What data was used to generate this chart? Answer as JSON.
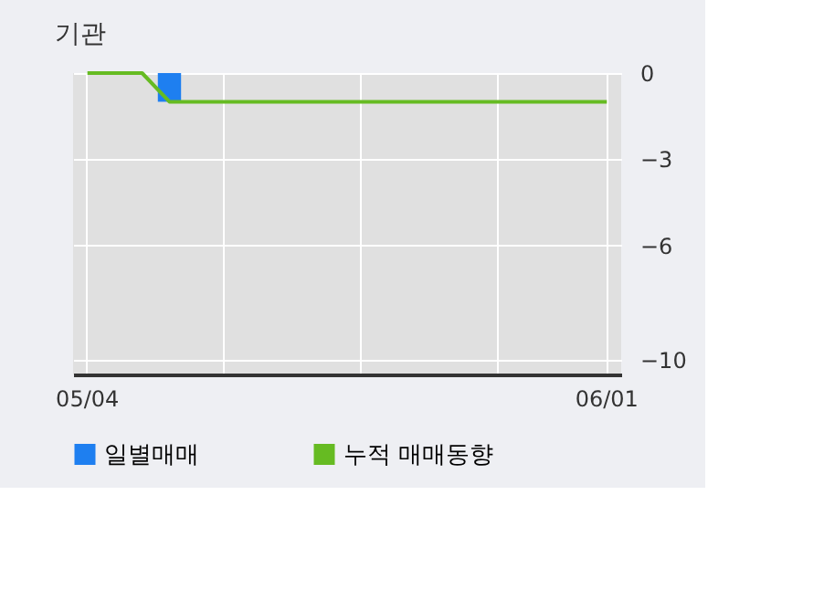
{
  "chart_data": {
    "type": "bar",
    "title": "기관",
    "categories": [
      "05/04",
      null,
      null,
      null,
      null,
      null,
      null,
      null,
      null,
      null,
      null,
      null,
      null,
      null,
      null,
      null,
      null,
      null,
      null,
      "06/01"
    ],
    "series": [
      {
        "name": "일별매매",
        "color": "#1e7ff0",
        "values": [
          null,
          null,
          null,
          -1,
          null,
          null,
          null,
          null,
          null,
          null,
          null,
          null,
          null,
          null,
          null,
          null,
          null,
          null,
          null,
          null
        ]
      },
      {
        "name": "누적 매매동향",
        "type": "line",
        "color": "#66bb22",
        "values": [
          0,
          0,
          0,
          -1,
          -1,
          -1,
          -1,
          -1,
          -1,
          -1,
          -1,
          -1,
          -1,
          -1,
          -1,
          -1,
          -1,
          -1,
          -1,
          -1
        ]
      }
    ],
    "ylim": [
      -10.5,
      0
    ],
    "yticks": [
      0,
      -3,
      -6,
      -10
    ],
    "grid": true,
    "legend": "bottom"
  }
}
